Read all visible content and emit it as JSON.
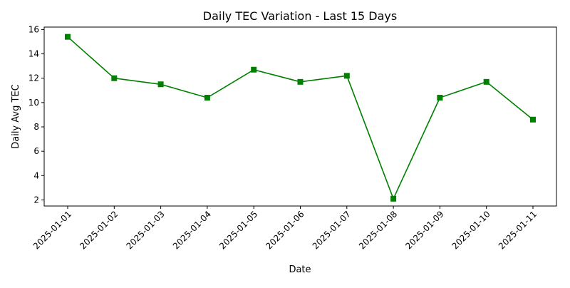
{
  "chart_data": {
    "type": "line",
    "title": "Daily TEC Variation - Last 15 Days",
    "xlabel": "Date",
    "ylabel": "Daily Avg TEC",
    "x": [
      "2025-01-01",
      "2025-01-02",
      "2025-01-03",
      "2025-01-04",
      "2025-01-05",
      "2025-01-06",
      "2025-01-07",
      "2025-01-08",
      "2025-01-09",
      "2025-01-10",
      "2025-01-11"
    ],
    "series": [
      {
        "values": [
          15.4,
          12.0,
          11.5,
          10.4,
          12.7,
          11.7,
          12.2,
          2.1,
          10.4,
          11.7,
          8.6
        ],
        "color": "#008000",
        "marker": "square"
      }
    ],
    "ylim": [
      1.5,
      16.2
    ],
    "yticks": [
      2,
      4,
      6,
      8,
      10,
      12,
      14,
      16
    ],
    "grid": false,
    "legend": false
  }
}
